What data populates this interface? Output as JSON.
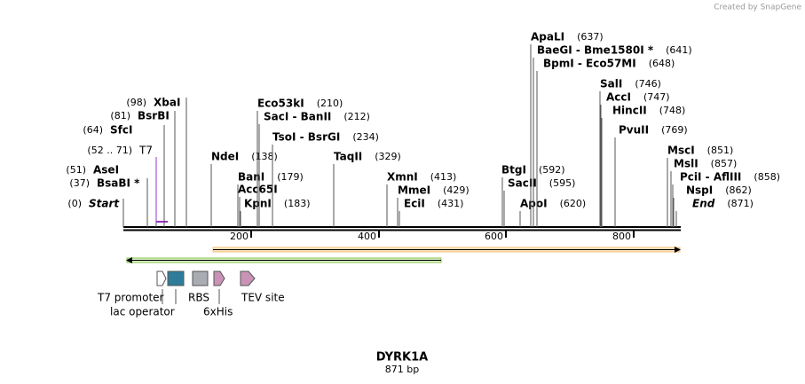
{
  "header": {
    "credit": "Created by SnapGene"
  },
  "sites": [
    {
      "name": "Start",
      "position": "(0)"
    },
    {
      "name": "BsaBI *",
      "position": "(37)"
    },
    {
      "name": "AseI",
      "position": "(51)"
    },
    {
      "name": "T7",
      "position": "(52 .. 71)"
    },
    {
      "name": "SfcI",
      "position": "(64)"
    },
    {
      "name": "BsrBI",
      "position": "(81)"
    },
    {
      "name": "XbaI",
      "position": "(98)"
    },
    {
      "name": "NdeI",
      "position": "(138)"
    },
    {
      "name": "BanI",
      "position": "(179)"
    },
    {
      "name": "Acc65I"
    },
    {
      "name": "KpnI",
      "position": "(183)"
    },
    {
      "name": "Eco53kI",
      "position": "(210)"
    },
    {
      "name": "SacI  -  BanII",
      "position": "(212)"
    },
    {
      "name": "TsoI  -  BsrGI",
      "position": "(234)"
    },
    {
      "name": "TaqII",
      "position": "(329)"
    },
    {
      "name": "XmnI",
      "position": "(413)"
    },
    {
      "name": "MmeI",
      "position": "(429)"
    },
    {
      "name": "EciI",
      "position": "(431)"
    },
    {
      "name": "BtgI",
      "position": "(592)"
    },
    {
      "name": "SacII",
      "position": "(595)"
    },
    {
      "name": "ApoI",
      "position": "(620)"
    },
    {
      "name": "ApaLI",
      "position": "(637)"
    },
    {
      "name": "BaeGI  -  Bme1580I *",
      "position": "(641)"
    },
    {
      "name": "BpmI  -  Eco57MI",
      "position": "(648)"
    },
    {
      "name": "SalI",
      "position": "(746)"
    },
    {
      "name": "AccI",
      "position": "(747)"
    },
    {
      "name": "HincII",
      "position": "(748)"
    },
    {
      "name": "PvuII",
      "position": "(769)"
    },
    {
      "name": "MscI",
      "position": "(851)"
    },
    {
      "name": "MslI",
      "position": "(857)"
    },
    {
      "name": "PciI  -  AflIII",
      "position": "(858)"
    },
    {
      "name": "NspI",
      "position": "(862)"
    },
    {
      "name": "End",
      "position": "(871)"
    }
  ],
  "ruler": {
    "ticks": [
      200,
      400,
      600,
      800
    ]
  },
  "features": [
    "T7 promoter",
    "lac operator",
    "RBS",
    "6xHis",
    "TEV site"
  ],
  "footer": {
    "title": "DYRK1A",
    "size": "871 bp"
  }
}
